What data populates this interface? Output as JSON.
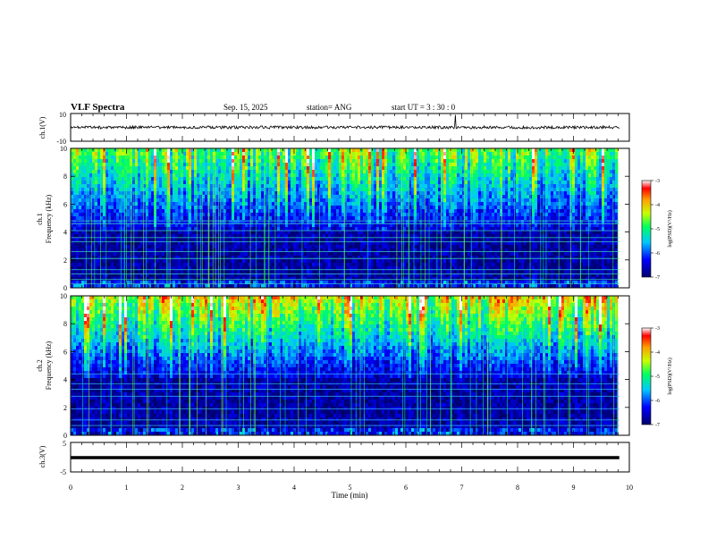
{
  "header": {
    "title": "VLF Spectra",
    "date": "Sep. 15, 2025",
    "station": "station= ANG",
    "start": "start  UT =   3  : 30 : 0"
  },
  "chart_data": {
    "type": "heatmap",
    "x": {
      "label": "Time  (min)",
      "range": [
        0,
        10
      ],
      "ticks": [
        "0",
        "1",
        "2",
        "3",
        "4",
        "5",
        "6",
        "7",
        "8",
        "9",
        "10"
      ],
      "data_end": 9.82
    },
    "panels": [
      {
        "id": "ch1-waveform",
        "type": "line",
        "ylabel": "ch.1(V)",
        "ylim": [
          -10,
          10
        ],
        "yticks": [
          "10",
          "-10"
        ],
        "baseline": 0
      },
      {
        "id": "ch1-spectrogram",
        "type": "heatmap",
        "ylabel_1": "ch.1",
        "ylabel_2": "Frequency  (kHz)",
        "ylim": [
          0,
          10
        ],
        "yticks": [
          "0",
          "2",
          "4",
          "6",
          "8",
          "10"
        ],
        "colorbar": {
          "label": "log(PSD)(V²/Hz)",
          "range": [
            -7,
            -3
          ],
          "ticks": [
            "-3",
            "-4",
            "-5",
            "-6",
            "-7"
          ]
        }
      },
      {
        "id": "ch2-spectrogram",
        "type": "heatmap",
        "ylabel_1": "ch.2",
        "ylabel_2": "Frequency  (kHz)",
        "ylim": [
          0,
          10
        ],
        "yticks": [
          "0",
          "2",
          "4",
          "6",
          "8",
          "10"
        ],
        "colorbar": {
          "label": "log(PSD)(V²/Hz)",
          "range": [
            -7,
            -3
          ],
          "ticks": [
            "-3",
            "-4",
            "-5",
            "-6",
            "-7"
          ]
        }
      },
      {
        "id": "ch3-waveform",
        "type": "line",
        "ylabel": "ch.3(V)",
        "ylim": [
          -5,
          5
        ],
        "yticks": [
          "5",
          "-5"
        ],
        "baseline": -1
      }
    ]
  },
  "colors": {
    "low": "#00007a",
    "mid": "#00c8ff",
    "high": "#ff0000"
  }
}
